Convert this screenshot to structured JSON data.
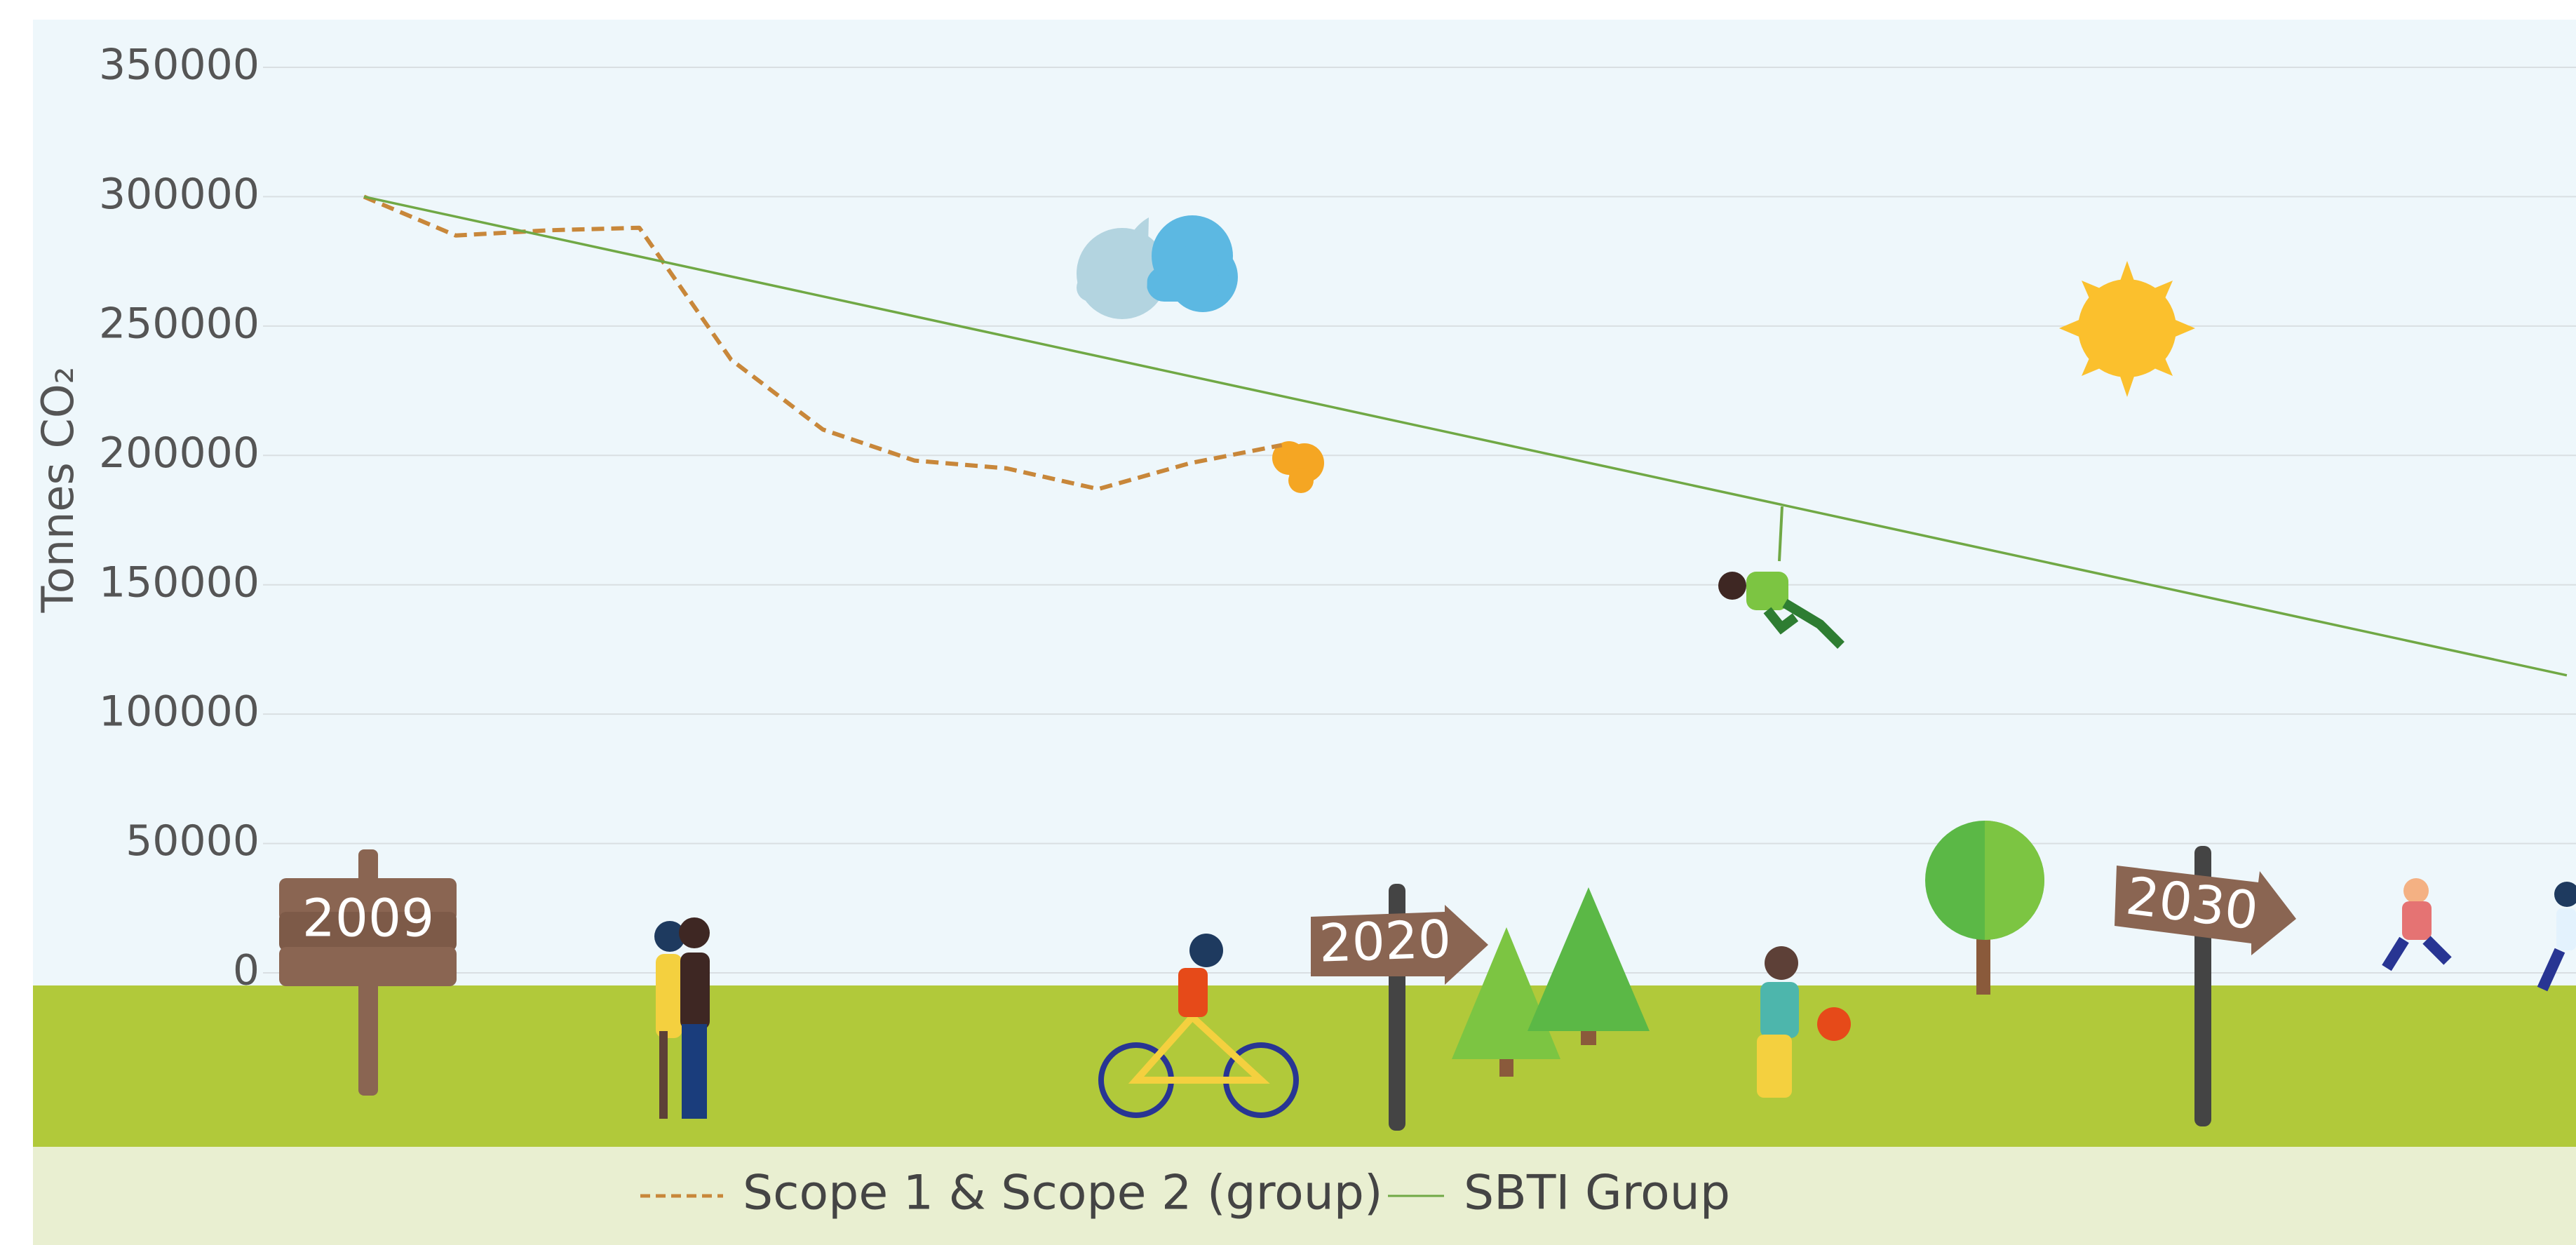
{
  "chart_data": {
    "type": "line",
    "y_label": "Tonnes  CO₂",
    "annotations": [
      "2009",
      "2020",
      "2030"
    ],
    "xlim": [
      2007.9,
      2033.1
    ],
    "ylim": [
      0,
      350000
    ],
    "yticks": [
      0,
      50000,
      100000,
      150000,
      200000,
      250000,
      300000,
      350000
    ],
    "grid": true,
    "series": [
      {
        "name": "Scope 1 & Scope 2 (group)",
        "color": "#c8873a",
        "dashed": true,
        "x": [
          2009,
          2010,
          2011,
          2012,
          2013,
          2014,
          2015,
          2016,
          2017,
          2018,
          2019
        ],
        "values": [
          300000,
          285000,
          287000,
          288000,
          237000,
          210000,
          198000,
          195000,
          187000,
          197000,
          204000
        ]
      },
      {
        "name": "SBTI Group",
        "color": "#70a845",
        "dashed": false,
        "x": [
          2009,
          2033
        ],
        "values": [
          300000,
          115000
        ]
      }
    ]
  }
}
